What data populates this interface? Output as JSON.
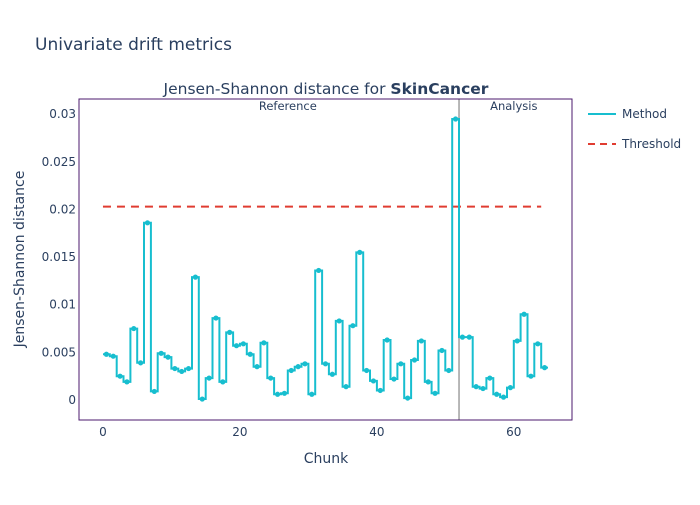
{
  "page_title": "Univariate drift metrics",
  "chart_data": {
    "type": "line",
    "line_shape": "step",
    "title_prefix": "Jensen-Shannon distance for ",
    "title_bold": "SkinCancer",
    "xlabel": "Chunk",
    "ylabel": "Jensen-Shannon distance",
    "xlim": [
      -3.5,
      68.5
    ],
    "ylim": [
      -0.0021,
      0.0316
    ],
    "x_ticks": [
      0,
      20,
      40,
      60
    ],
    "x_tick_labels": [
      "0",
      "20",
      "40",
      "60"
    ],
    "y_ticks": [
      0,
      0.005,
      0.01,
      0.015,
      0.02,
      0.025,
      0.03
    ],
    "y_tick_labels": [
      "0",
      "0.005",
      "0.01",
      "0.015",
      "0.02",
      "0.025",
      "0.03"
    ],
    "grid": false,
    "legend_position": "top-right",
    "colors": {
      "method": "#17becf",
      "threshold": "#e03c31",
      "divider": "#888888",
      "frame": "#4b1a6e"
    },
    "series": [
      {
        "name": "Method",
        "values": [
          0.0048,
          0.0046,
          0.0025,
          0.0019,
          0.0075,
          0.0039,
          0.0186,
          0.0009,
          0.0049,
          0.0045,
          0.0033,
          0.003,
          0.0033,
          0.0129,
          0.0001,
          0.0023,
          0.0086,
          0.0019,
          0.0071,
          0.0057,
          0.0059,
          0.0048,
          0.0035,
          0.006,
          0.0023,
          0.0006,
          0.0007,
          0.0031,
          0.0035,
          0.0038,
          0.0006,
          0.0136,
          0.0038,
          0.0027,
          0.0083,
          0.0014,
          0.0078,
          0.0155,
          0.0031,
          0.002,
          0.001,
          0.0063,
          0.0022,
          0.0038,
          0.0002,
          0.0042,
          0.0062,
          0.0019,
          0.0007,
          0.0052,
          0.0031,
          0.0295,
          0.0066,
          0.0066,
          0.0014,
          0.0012,
          0.0023,
          0.0006,
          0.0003,
          0.0013,
          0.0062,
          0.009,
          0.0025,
          0.0059,
          0.0034
        ]
      },
      {
        "name": "Threshold",
        "value": 0.0203,
        "x_range": [
          0,
          64
        ]
      }
    ],
    "divider_x": 52,
    "annotations": [
      {
        "text": "Reference",
        "x": 27
      },
      {
        "text": "Analysis",
        "x": 60
      }
    ]
  }
}
